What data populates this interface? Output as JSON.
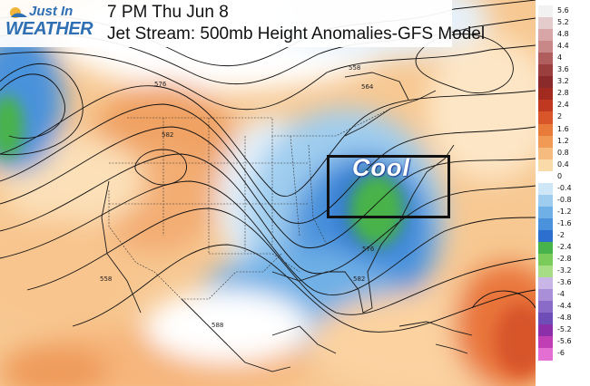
{
  "logo": {
    "line1": "Just In",
    "line2": "WEATHER"
  },
  "header": {
    "time": "7 PM Thu Jun 8",
    "description": "Jet Stream: 500mb Height Anomalies-GFS Model"
  },
  "annotation": {
    "label": "Cool"
  },
  "contour_labels": [
    "576",
    "582",
    "558",
    "564",
    "576",
    "582",
    "588",
    "558"
  ],
  "scale": {
    "ticks": [
      "5.6",
      "5.2",
      "4.8",
      "4.4",
      "4",
      "3.6",
      "3.2",
      "2.8",
      "2.4",
      "2",
      "1.6",
      "1.2",
      "0.8",
      "0.4",
      "0",
      "-0.4",
      "-0.8",
      "-1.2",
      "-1.6",
      "-2",
      "-2.4",
      "-2.8",
      "-3.2",
      "-3.6",
      "-4",
      "-4.4",
      "-4.8",
      "-5.2",
      "-5.6",
      "-6"
    ],
    "colors": [
      "#f2f2f2",
      "#e4cccc",
      "#d8a6a6",
      "#c98888",
      "#b05d5d",
      "#9a3e3e",
      "#8a2a2a",
      "#a22a1e",
      "#c0381f",
      "#d9552a",
      "#e87a3a",
      "#f09a55",
      "#f6bb7e",
      "#fadaa8",
      "#ffffff",
      "#cfe6f7",
      "#9fcdef",
      "#6fb0e6",
      "#4a92dc",
      "#2c6fcf",
      "#48b34a",
      "#7acb5a",
      "#a6dd85",
      "#c9b6e6",
      "#a98fd8",
      "#8a6bc7",
      "#6f4db6",
      "#8c2fa8",
      "#c03fb4",
      "#e36fd2"
    ]
  },
  "colors": {
    "logo_blue": "#2f6fb3",
    "warm_anomaly": "#f09a55",
    "cool_anomaly": "#2c6fcf",
    "strong_cool": "#48b34a"
  }
}
